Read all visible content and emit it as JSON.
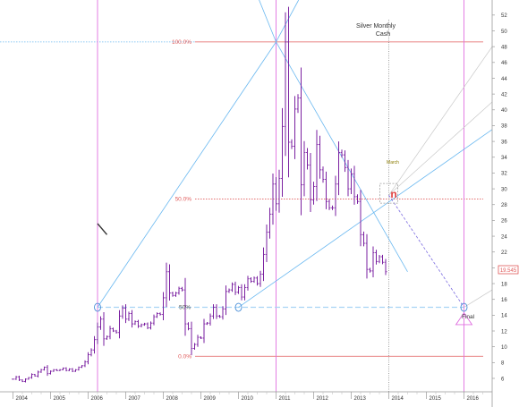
{
  "title_line1": "Silver Monthly",
  "title_line2": "Cash",
  "fib_label_100": "100.0%",
  "fib_label_50": "50.0%",
  "fib_label_0": "0.0%",
  "half_label": "50%",
  "march_label": "March",
  "final_label": "Final",
  "last_price_label": "19.545",
  "colors": {
    "price_bars": "#7a1fa0",
    "fib_lines": "#e05a5a",
    "vertical_markers": "#e070e0",
    "fan_lines": "#6ab8f0",
    "gray_lines": "#c8c8c8",
    "target_triangle": "#e070e0",
    "box_marker": "#a0a0a0",
    "n_glyph": "#e04040"
  },
  "chart_data": {
    "type": "bar",
    "x_axis_years": [
      "2004",
      "2005",
      "2006",
      "2007",
      "2008",
      "2009",
      "2010",
      "2011",
      "2012",
      "2013",
      "2014",
      "2015",
      "2016"
    ],
    "y_ticks": [
      6,
      8,
      10,
      12,
      14,
      16,
      18,
      20,
      22,
      24,
      26,
      28,
      30,
      32,
      34,
      36,
      38,
      40,
      42,
      44,
      46,
      48,
      50,
      52
    ],
    "ylim": [
      4.3,
      53
    ],
    "xlim": [
      2003.75,
      2016.75
    ],
    "fib_levels": [
      {
        "label": "100.0%",
        "value": 48.6
      },
      {
        "label": "50.0%",
        "value": 28.7
      },
      {
        "label": "0.0%",
        "value": 8.8
      }
    ],
    "half_line_value": 15.0,
    "last_price": 19.545,
    "vertical_markers_year": [
      2006.25,
      2011.0,
      2016.0
    ],
    "dotted_vertical_year": 2014.0,
    "monthly_closes": [
      5.9,
      6.2,
      5.8,
      5.6,
      5.9,
      6.1,
      6.5,
      6.3,
      6.8,
      7.1,
      7.4,
      6.6,
      6.9,
      7.1,
      7.0,
      7.1,
      7.3,
      7.0,
      7.2,
      6.9,
      7.1,
      7.4,
      7.6,
      8.1,
      9.0,
      9.6,
      10.9,
      12.5,
      13.5,
      11.0,
      11.3,
      12.3,
      12.0,
      11.8,
      13.9,
      14.9,
      13.5,
      14.2,
      12.9,
      13.2,
      12.6,
      12.8,
      12.9,
      12.4,
      13.0,
      13.8,
      14.2,
      14.1,
      16.2,
      19.5,
      16.8,
      16.5,
      16.8,
      17.4,
      17.2,
      12.9,
      12.3,
      9.8,
      10.3,
      11.2,
      11.1,
      12.9,
      13.0,
      13.9,
      15.0,
      13.9,
      13.8,
      14.8,
      17.0,
      17.2,
      17.9,
      16.9,
      17.5,
      16.3,
      17.5,
      18.6,
      18.3,
      18.7,
      18.0,
      19.2,
      21.7,
      24.5,
      26.8,
      30.6,
      28.1,
      31.3,
      37.9,
      48.6,
      35.9,
      35.4,
      40.1,
      41.5,
      30.5,
      34.6,
      33.0,
      28.6,
      30.3,
      35.6,
      32.4,
      31.2,
      28.4,
      27.6,
      27.6,
      30.6,
      34.6,
      34.3,
      32.7,
      30.0,
      31.9,
      29.0,
      28.4,
      24.2,
      23.1,
      19.8,
      19.6,
      21.9,
      20.8,
      21.4,
      20.7,
      19.5
    ]
  }
}
